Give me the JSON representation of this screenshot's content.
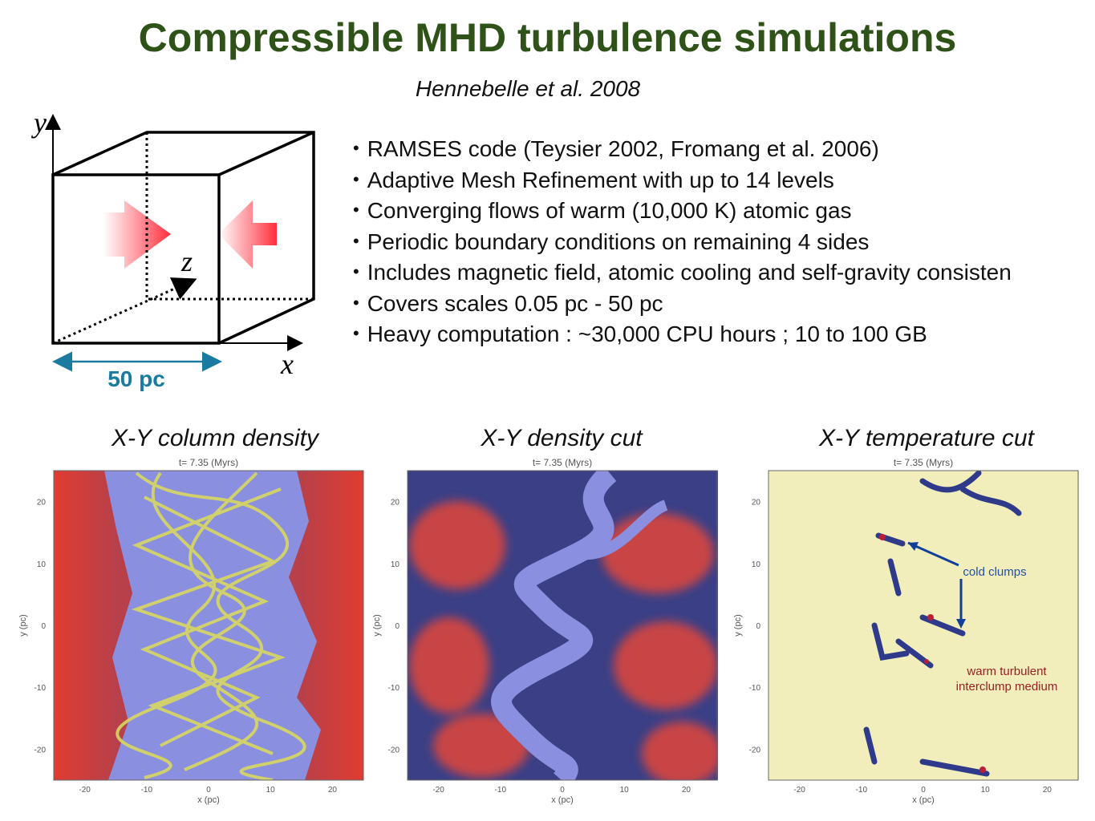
{
  "header": {
    "title": "Compressible MHD turbulence simulations",
    "citation": "Hennebelle et al. 2008"
  },
  "diagram": {
    "y_axis": "y",
    "z_axis": "z",
    "x_axis": "x",
    "scale": "50 pc"
  },
  "bullets": [
    "RAMSES code (Teysier 2002, Fromang et al. 2006)",
    "Adaptive Mesh Refinement with up to 14 levels",
    "Converging flows of warm (10,000 K) atomic gas",
    "Periodic boundary conditions on remaining 4 sides",
    "Includes magnetic field, atomic cooling and self-gravity consisten",
    "Covers scales 0.05 pc - 50 pc",
    "Heavy computation : ~30,000 CPU hours ; 10 to 100 GB"
  ],
  "panels": [
    {
      "title": "X-Y column density",
      "time": "t= 7.35 (Myrs)",
      "xlabel": "x (pc)",
      "ylabel": "y (pc)"
    },
    {
      "title": "X-Y density cut",
      "time": "t= 7.35 (Myrs)",
      "xlabel": "x (pc)",
      "ylabel": "y (pc)"
    },
    {
      "title": "X-Y temperature cut",
      "time": "t= 7.35 (Myrs)",
      "xlabel": "x (pc)",
      "ylabel": "y (pc)"
    }
  ],
  "ticks": [
    -20,
    -10,
    0,
    10,
    20
  ],
  "annotations": {
    "cold": "cold clumps",
    "warm": [
      "warm turbulent",
      "interclump medium"
    ]
  }
}
